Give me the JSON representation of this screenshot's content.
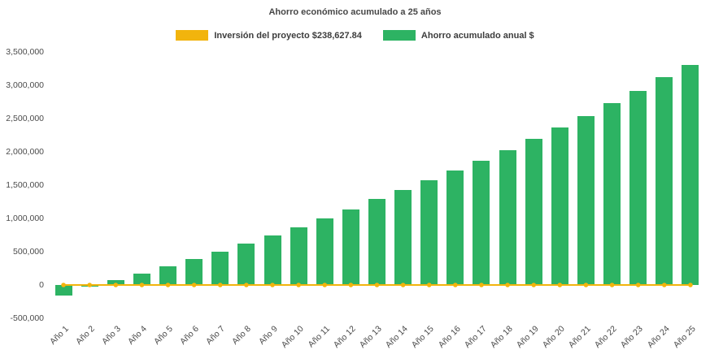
{
  "title": "Ahorro económico acumulado a 25 años",
  "legend": [
    {
      "label": "Inversión del proyecto $238,627.84",
      "color": "#f2b40d"
    },
    {
      "label": "Ahorro acumulado anual $",
      "color": "#2db363"
    }
  ],
  "chart_data": {
    "type": "bar",
    "title": "Ahorro económico acumulado a 25 años",
    "categories": [
      "Año 1",
      "Año 2",
      "Año 3",
      "Año 4",
      "Año 5",
      "Año 6",
      "Año 7",
      "Año 8",
      "Año 9",
      "Año 10",
      "Año 11",
      "Año 12",
      "Año 13",
      "Año 14",
      "Año 15",
      "Año 16",
      "Año 17",
      "Año 18",
      "Año 19",
      "Año 20",
      "Año 21",
      "Año 22",
      "Año 23",
      "Año 24",
      "Año 25"
    ],
    "series": [
      {
        "name": "Ahorro acumulado anual $",
        "type": "bar",
        "color": "#2db363",
        "values": [
          -160000,
          -30000,
          70000,
          170000,
          280000,
          390000,
          500000,
          620000,
          740000,
          870000,
          1000000,
          1140000,
          1290000,
          1430000,
          1570000,
          1720000,
          1870000,
          2020000,
          2190000,
          2360000,
          2540000,
          2730000,
          2920000,
          3120000,
          3310000
        ]
      },
      {
        "name": "Inversión del proyecto $238,627.84",
        "type": "line",
        "color": "#f2b40d",
        "stated_value": "238,627.84",
        "values": [
          0,
          0,
          0,
          0,
          0,
          0,
          0,
          0,
          0,
          0,
          0,
          0,
          0,
          0,
          0,
          0,
          0,
          0,
          0,
          0,
          0,
          0,
          0,
          0,
          0
        ]
      }
    ],
    "xlabel": "",
    "ylabel": "",
    "ylim": [
      -500000,
      3500000
    ],
    "ytick_step": 500000,
    "grid": false,
    "legend_position": "top"
  }
}
